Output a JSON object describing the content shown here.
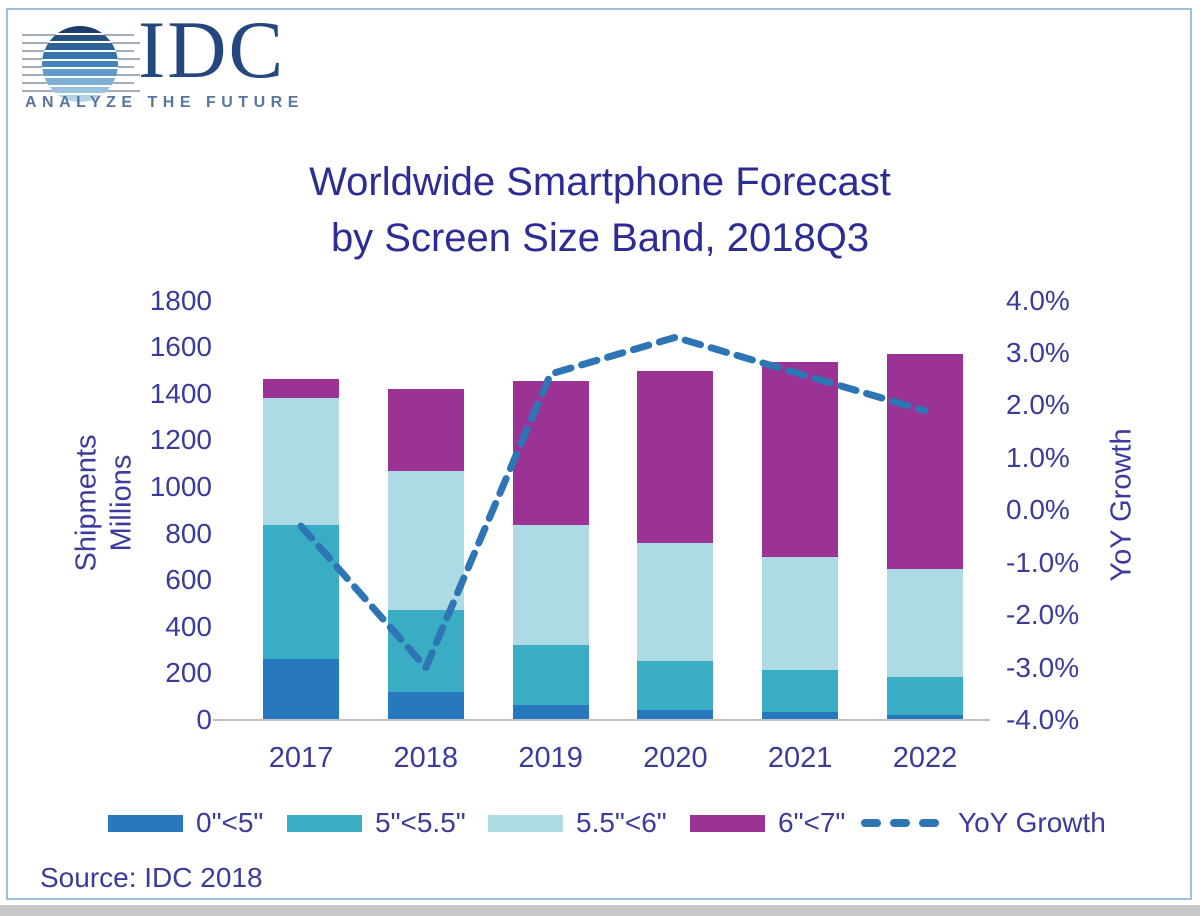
{
  "logo": {
    "brand": "IDC",
    "tagline": "ANALYZE THE FUTURE"
  },
  "title": {
    "line1": "Worldwide Smartphone Forecast",
    "line2": "by Screen Size Band, 2018Q3"
  },
  "y_axis": {
    "title_line1": "Shipments",
    "title_line2": "Millions",
    "ticks": [
      "1800",
      "1600",
      "1400",
      "1200",
      "1000",
      "800",
      "600",
      "400",
      "200",
      "0"
    ]
  },
  "y2_axis": {
    "title": "YoY Growth",
    "ticks": [
      "4.0%",
      "3.0%",
      "2.0%",
      "1.0%",
      "0.0%",
      "-1.0%",
      "-2.0%",
      "-3.0%",
      "-4.0%"
    ]
  },
  "x_axis": {
    "categories": [
      "2017",
      "2018",
      "2019",
      "2020",
      "2021",
      "2022"
    ]
  },
  "legend": [
    {
      "label": "0\"<5\"",
      "color": "#2878BE",
      "type": "swatch"
    },
    {
      "label": "5\"<5.5\"",
      "color": "#3AACC4",
      "type": "swatch"
    },
    {
      "label": "5.5\"<6\"",
      "color": "#AEDAE3",
      "type": "swatch"
    },
    {
      "label": "6\"<7\"",
      "color": "#9A3393",
      "type": "swatch"
    },
    {
      "label": "YoY Growth",
      "color": "#2E75B6",
      "type": "dash"
    }
  ],
  "source": "Source: IDC 2018",
  "colors": {
    "text_navy": "#3C3B9B",
    "title_navy": "#2D2C95",
    "frame_border": "#9EC0DC",
    "line": "#2E75B6"
  },
  "chart_data": {
    "type": "bar",
    "subtype": "stacked-bars-with-line-overlay",
    "title": "Worldwide Smartphone Forecast by Screen Size Band, 2018Q3",
    "categories": [
      "2017",
      "2018",
      "2019",
      "2020",
      "2021",
      "2022"
    ],
    "series": [
      {
        "name": "0\"<5\"",
        "color": "#2878BE",
        "values": [
          260,
          120,
          65,
          45,
          35,
          20
        ]
      },
      {
        "name": "5\"<5.5\"",
        "color": "#3AACC4",
        "values": [
          575,
          350,
          255,
          210,
          180,
          165
        ]
      },
      {
        "name": "5.5\"<6\"",
        "color": "#AEDAE3",
        "values": [
          545,
          600,
          515,
          505,
          485,
          465
        ]
      },
      {
        "name": "6\"<7\"",
        "color": "#9A3393",
        "values": [
          85,
          350,
          620,
          740,
          835,
          920
        ]
      }
    ],
    "totals_millions": [
      1465,
      1420,
      1455,
      1500,
      1535,
      1570
    ],
    "line_series": {
      "name": "YoY Growth",
      "color": "#2E75B6",
      "axis": "right",
      "values_percent": [
        -0.3,
        -3.0,
        2.6,
        3.3,
        2.6,
        1.9
      ],
      "style": "dashed"
    },
    "ylabel": "Shipments Millions",
    "ylim": [
      0,
      1800
    ],
    "y2label": "YoY Growth",
    "y2lim": [
      -4.0,
      4.0
    ],
    "grid": false,
    "legend_position": "bottom"
  }
}
